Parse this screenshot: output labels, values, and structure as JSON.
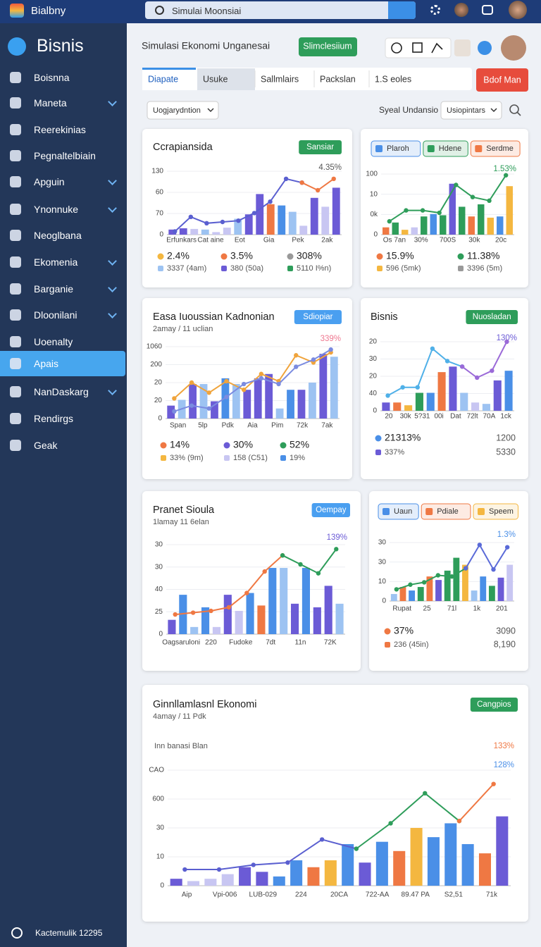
{
  "topbar": {
    "brand": "Bialbny",
    "search": "Simulai Moonsiai"
  },
  "sidebar": {
    "title": "Bisnis",
    "items": [
      {
        "label": "Boisnna"
      },
      {
        "label": "Maneta",
        "expandable": true
      },
      {
        "label": "Reerekinias"
      },
      {
        "label": "Pegnaltelbiain"
      },
      {
        "label": "Apguin",
        "expandable": true
      },
      {
        "label": "Ynonnuke",
        "expandable": true
      },
      {
        "label": "Neoglbana"
      },
      {
        "label": "Ekomenia",
        "expandable": true
      },
      {
        "label": "Barganie",
        "expandable": true
      },
      {
        "label": "Dloonilani",
        "expandable": true
      },
      {
        "label": "Uoenalty"
      },
      {
        "label": "Apais"
      },
      {
        "label": "NanDaskarg",
        "expandable": true
      },
      {
        "label": "Rendirgs"
      },
      {
        "label": "Geak"
      }
    ],
    "active": 11,
    "footer": "Kactemulik 12295"
  },
  "header": {
    "title": "Simulasi Ekonomi Unganesai",
    "button": "Slimclesiium"
  },
  "tabs": {
    "items": [
      "Diapate",
      "Usuke",
      "Sallmlairs",
      "Packslan",
      "1.S eoles"
    ],
    "active": 0,
    "action": "Bdof Man"
  },
  "filters": {
    "dropdown": "Uogjarydntion",
    "label": "Syeal Undansio",
    "select": "Usiopintars"
  },
  "cards": [
    {
      "title": "Ccrapiansida",
      "badge": {
        "text": "Sansiar",
        "color": "#2e9d5a"
      },
      "annotations": [
        {
          "text": "4.35%",
          "color": "#555"
        }
      ],
      "chart": {
        "y_labels": [
          "130",
          "60",
          "70",
          "0"
        ],
        "x_labels": [
          "Erfunkars",
          "Cat aine",
          "Eot",
          "Gia",
          "Pek",
          "2ak"
        ],
        "bars": {
          "values": [
            8,
            10,
            9,
            8,
            4,
            11,
            25,
            32,
            64,
            48,
            46,
            36,
            14,
            58,
            44,
            74
          ],
          "colors": [
            "#6b5bd6",
            "#6b5bd6",
            "#c8c6f2",
            "#9dc3f2",
            "#c8c6f2",
            "#c8c6f2",
            "#9dc3f2",
            "#6b5bd6",
            "#6b5bd6",
            "#ef7843",
            "#4a8fe7",
            "#9dc3f2",
            "#c8c6f2",
            "#6b5bd6",
            "#c8c6f2",
            "#6b5bd6"
          ]
        },
        "lines": [
          {
            "color": "#5a5fd0",
            "values": [
              5,
              28,
              18,
              20,
              22,
              34,
              52,
              88,
              82,
              null,
              null
            ]
          },
          {
            "color": "#ef7843",
            "values": [
              null,
              null,
              null,
              null,
              null,
              null,
              null,
              null,
              82,
              70,
              88
            ]
          }
        ]
      },
      "stats": [
        {
          "main": "2.4%",
          "color": "#f4b740",
          "sub": "3337 (4am)",
          "subcolor": "#9dc3f2"
        },
        {
          "main": "3.5%",
          "color": "#ef7843",
          "sub": "380 (50a)",
          "subcolor": "#6b5bd6"
        },
        {
          "main": "308%",
          "color": "#999999",
          "sub": "5110 I%n)",
          "subcolor": "#2e9d5a"
        }
      ]
    },
    {
      "chips": [
        {
          "text": "Plaroh",
          "color": "#4a8fe7"
        },
        {
          "text": "Hdene",
          "color": "#2e9d5a"
        },
        {
          "text": "Serdme",
          "color": "#ef7843"
        }
      ],
      "annotations": [
        {
          "text": "1.53%",
          "color": "#2e9d5a"
        }
      ],
      "chart": {
        "y_labels": [
          "100",
          "10",
          "0k",
          "0"
        ],
        "x_labels": [
          "Os 7an",
          "30%",
          "700S",
          "30k",
          "20c"
        ],
        "bars": {
          "values": [
            12,
            20,
            8,
            12,
            30,
            34,
            32,
            84,
            46,
            30,
            50,
            28,
            30,
            80
          ],
          "colors": [
            "#ef7843",
            "#2e9d5a",
            "#f4b740",
            "#c8c6f2",
            "#2e9d5a",
            "#4a8fe7",
            "#2e9d5a",
            "#6b5bd6",
            "#2e9d5a",
            "#ef7843",
            "#2e9d5a",
            "#f4b740",
            "#4a8fe7",
            "#f4b740"
          ]
        },
        "lines": [
          {
            "color": "#2e9d5a",
            "values": [
              22,
              40,
              40,
              36,
              82,
              62,
              56,
              98
            ]
          }
        ]
      },
      "stats": [
        {
          "main": "15.9%",
          "color": "#ef7843",
          "sub": "596 (5mk)",
          "subcolor": "#f4b740"
        },
        {
          "main": "11.38%",
          "color": "#2e9d5a",
          "sub": "3396 (5m)",
          "subcolor": "#999999"
        }
      ]
    },
    {
      "title": "Easa Iuoussian Kadnonian",
      "subtitle": "2amay / 11 uclian",
      "badge": {
        "text": "Sdiopiar",
        "color": "#4a9ff0"
      },
      "annotations": [
        {
          "text": "339%",
          "color": "#ef7890"
        }
      ],
      "chart": {
        "y_labels": [
          "1060",
          "200",
          "20",
          "20",
          "0"
        ],
        "x_labels": [
          "Span",
          "5lp",
          "Pdk",
          "Aia",
          "Pim",
          "72k",
          "7ak"
        ],
        "bars": {
          "values": [
            18,
            26,
            48,
            48,
            24,
            56,
            48,
            40,
            56,
            62,
            14,
            40,
            40,
            50,
            90,
            86
          ],
          "colors": [
            "#6b5bd6",
            "#9dc3f2",
            "#6b5bd6",
            "#9dc3f2",
            "#6b5bd6",
            "#4a8fe7",
            "#9dc3f2",
            "#6b5bd6",
            "#6b5bd6",
            "#6b5bd6",
            "#9dc3f2",
            "#4a8fe7",
            "#6b5bd6",
            "#9dc3f2",
            "#6b5bd6",
            "#9dc3f2"
          ]
        },
        "lines": [
          {
            "color": "#f0a43c",
            "values": [
              28,
              50,
              36,
              52,
              40,
              62,
              52,
              88,
              78,
              92
            ]
          },
          {
            "color": "#7b8be0",
            "values": [
              10,
              18,
              14,
              30,
              48,
              56,
              48,
              72,
              82,
              96
            ]
          }
        ]
      },
      "stats": [
        {
          "main": "14%",
          "color": "#ef7843",
          "sub": "33% (9m)",
          "subcolor": "#f4b740"
        },
        {
          "main": "30%",
          "color": "#6b5bd6",
          "sub": "158 (C51)",
          "subcolor": "#c8c6f2"
        },
        {
          "main": "52%",
          "color": "#2e9d5a",
          "sub": "19%",
          "subcolor": "#4a8fe7"
        }
      ]
    },
    {
      "title": "Bisnis",
      "badge": {
        "text": "Nuosladan",
        "color": "#2e9d5a"
      },
      "annotations": [
        {
          "text": "130%",
          "color": "#6b5bd6"
        }
      ],
      "chart": {
        "y_labels": [
          "20",
          "30",
          "20",
          "40",
          "0"
        ],
        "x_labels": [
          "20",
          "30k",
          "5?31",
          "00i",
          "Dat",
          "72lt",
          "70A",
          "1ck"
        ],
        "bars": {
          "values": [
            12,
            12,
            8,
            26,
            26,
            56,
            64,
            26,
            12,
            10,
            44,
            58
          ],
          "colors": [
            "#6b5bd6",
            "#ef7843",
            "#f4b740",
            "#2e9d5a",
            "#4a8fe7",
            "#ef7843",
            "#6b5bd6",
            "#9dc3f2",
            "#c8c6f2",
            "#9dc3f2",
            "#6b5bd6",
            "#4a8fe7"
          ]
        },
        "lines": [
          {
            "color": "#4fb0e8",
            "values": [
              22,
              34,
              34,
              90,
              72,
              64,
              null,
              null,
              null
            ]
          },
          {
            "color": "#9b6ad8",
            "values": [
              null,
              null,
              null,
              null,
              null,
              64,
              48,
              58,
              100
            ]
          }
        ]
      },
      "stats": [
        {
          "main": "21313%",
          "color": "#4a8fe7",
          "sub": "337%",
          "subcolor": "#6b5bd6"
        },
        {
          "main": "1200",
          "sub": "5330"
        }
      ]
    },
    {
      "title": "Pranet Sioula",
      "subtitle": "1lamay 11 6elan",
      "badge": {
        "text": "Oempay",
        "color": "#4a9ff0"
      },
      "annotations": [
        {
          "text": "139%",
          "color": "#6b5bd6"
        }
      ],
      "chart": {
        "y_labels": [
          "30",
          "30",
          "40",
          "25",
          "0"
        ],
        "x_labels": [
          "Oagsaruloni",
          "220",
          "Fudoke",
          "7dt",
          "11n",
          "72K"
        ],
        "bars": {
          "values": [
            16,
            44,
            8,
            30,
            8,
            44,
            26,
            46,
            32,
            74,
            74,
            34,
            74,
            30,
            54,
            34
          ],
          "colors": [
            "#6b5bd6",
            "#4a8fe7",
            "#9dc3f2",
            "#4a8fe7",
            "#c8c6f2",
            "#6b5bd6",
            "#c8c6f2",
            "#4a8fe7",
            "#ef7843",
            "#4a8fe7",
            "#9dc3f2",
            "#6b5bd6",
            "#4a8fe7",
            "#6b5bd6",
            "#6b5bd6",
            "#9dc3f2"
          ]
        },
        "lines": [
          {
            "color": "#ef7843",
            "values": [
              22,
              24,
              26,
              30,
              46,
              70,
              88,
              null,
              null,
              null
            ]
          },
          {
            "color": "#2e9d5a",
            "values": [
              null,
              null,
              null,
              null,
              null,
              null,
              88,
              78,
              68,
              95
            ]
          }
        ]
      },
      "stats": []
    },
    {
      "chips": [
        {
          "text": "Uaun",
          "color": "#4a8fe7"
        },
        {
          "text": "Pdiale",
          "color": "#ef7843"
        },
        {
          "text": "Speem",
          "color": "#f4b740"
        }
      ],
      "annotations": [
        {
          "text": "1.3%",
          "color": "#4a8fe7"
        }
      ],
      "chart": {
        "y_labels": [
          "30",
          "30",
          "10",
          "0"
        ],
        "x_labels": [
          "Rupat",
          "25",
          "71l",
          "1k",
          "201"
        ],
        "bars": {
          "values": [
            12,
            24,
            18,
            24,
            42,
            36,
            52,
            74,
            62,
            18,
            42,
            26,
            40,
            62
          ],
          "colors": [
            "#9dc3f2",
            "#ef7843",
            "#4a8fe7",
            "#2e9d5a",
            "#ef7843",
            "#6b5bd6",
            "#2e9d5a",
            "#2e9d5a",
            "#f4b740",
            "#9dc3f2",
            "#4a8fe7",
            "#2e9d5a",
            "#6b5bd6",
            "#c8c6f2"
          ]
        },
        "lines": [
          {
            "color": "#2e9d5a",
            "values": [
              20,
              28,
              32,
              44,
              42,
              56,
              null,
              null,
              null
            ]
          },
          {
            "color": "#5a6ad8",
            "values": [
              null,
              null,
              null,
              null,
              null,
              56,
              96,
              54,
              92
            ]
          }
        ]
      },
      "stats": [
        {
          "main": "37%",
          "color": "#ef7843",
          "sub": "236 (45in)",
          "subcolor": "#ef7843"
        },
        {
          "main": "3090",
          "sub": "8,190"
        }
      ]
    },
    {
      "title": "Ginnllamlasnl Ekonomi",
      "subtitle": "4amay / 11 Pdk",
      "badge": {
        "text": "Cangpios",
        "color": "#2e9d5a"
      },
      "label": "Inn banasi Blan",
      "annotations": [
        {
          "text": "133%",
          "color": "#ef7843"
        },
        {
          "text": "128%",
          "color": "#4a8fe7"
        }
      ],
      "chart": {
        "y_labels": [
          "CAO",
          "600",
          "30",
          "10",
          "0"
        ],
        "x_labels": [
          "Aip",
          "Vpi-006",
          "LUB-029",
          "224",
          "20CA",
          "722-AA",
          "89.47 PA",
          "S2,51",
          "71k"
        ],
        "bars": {
          "values": [
            6,
            4,
            6,
            10,
            16,
            12,
            8,
            22,
            16,
            22,
            36,
            20,
            38,
            30,
            50,
            42,
            54,
            36,
            28,
            60
          ],
          "colors": [
            "#6b5bd6",
            "#c8c6f2",
            "#c8c6f2",
            "#c8c6f2",
            "#6b5bd6",
            "#6b5bd6",
            "#4a8fe7",
            "#4a8fe7",
            "#ef7843",
            "#f4b740",
            "#4a8fe7",
            "#6b5bd6",
            "#4a8fe7",
            "#ef7843",
            "#f4b740",
            "#4a8fe7",
            "#4a8fe7",
            "#4a8fe7",
            "#ef7843",
            "#6b5bd6"
          ]
        },
        "lines": [
          {
            "color": "#5a5fd0",
            "values": [
              14,
              14,
              18,
              20,
              40,
              32,
              null,
              null,
              null,
              null
            ]
          },
          {
            "color": "#2e9d5a",
            "values": [
              null,
              null,
              null,
              null,
              null,
              32,
              54,
              80,
              56,
              null
            ]
          },
          {
            "color": "#ef7843",
            "values": [
              null,
              null,
              null,
              null,
              null,
              null,
              null,
              null,
              56,
              88
            ]
          }
        ]
      },
      "stats": []
    }
  ]
}
